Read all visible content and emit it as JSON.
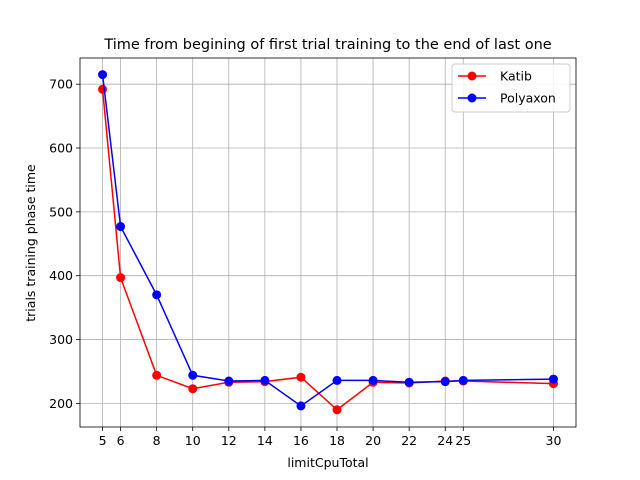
{
  "chart_data": {
    "type": "line",
    "title": "Time from begining of first trial training to the end of last one",
    "xlabel": "limitCpuTotal",
    "ylabel": "trials training phase time",
    "xticks": [
      5,
      6,
      8,
      10,
      12,
      14,
      16,
      18,
      20,
      22,
      24,
      25,
      30
    ],
    "xtick_labels": [
      "5",
      "6",
      "8",
      "10",
      "12",
      "14",
      "16",
      "18",
      "20",
      "22",
      "24",
      "25",
      "30"
    ],
    "yticks": [
      200,
      300,
      400,
      500,
      600,
      700
    ],
    "yticks_labels": [
      "200",
      "300",
      "400",
      "500",
      "600",
      "700"
    ],
    "xlim": [
      3.75,
      31.25
    ],
    "ylim": [
      163,
      741
    ],
    "grid": true,
    "legend_position": "top-right",
    "x": [
      5,
      6,
      8,
      10,
      12,
      14,
      16,
      18,
      20,
      22,
      24,
      25,
      30
    ],
    "series": [
      {
        "name": "Katib",
        "color": "#ff0000",
        "marker": "circle",
        "values": [
          692,
          397,
          244,
          223,
          233,
          234,
          241,
          190,
          233,
          232,
          235,
          235,
          231
        ]
      },
      {
        "name": "Polyaxon",
        "color": "#0000ff",
        "marker": "circle",
        "values": [
          715,
          477,
          370,
          244,
          235,
          236,
          196,
          236,
          236,
          233,
          234,
          236,
          238
        ]
      }
    ]
  }
}
